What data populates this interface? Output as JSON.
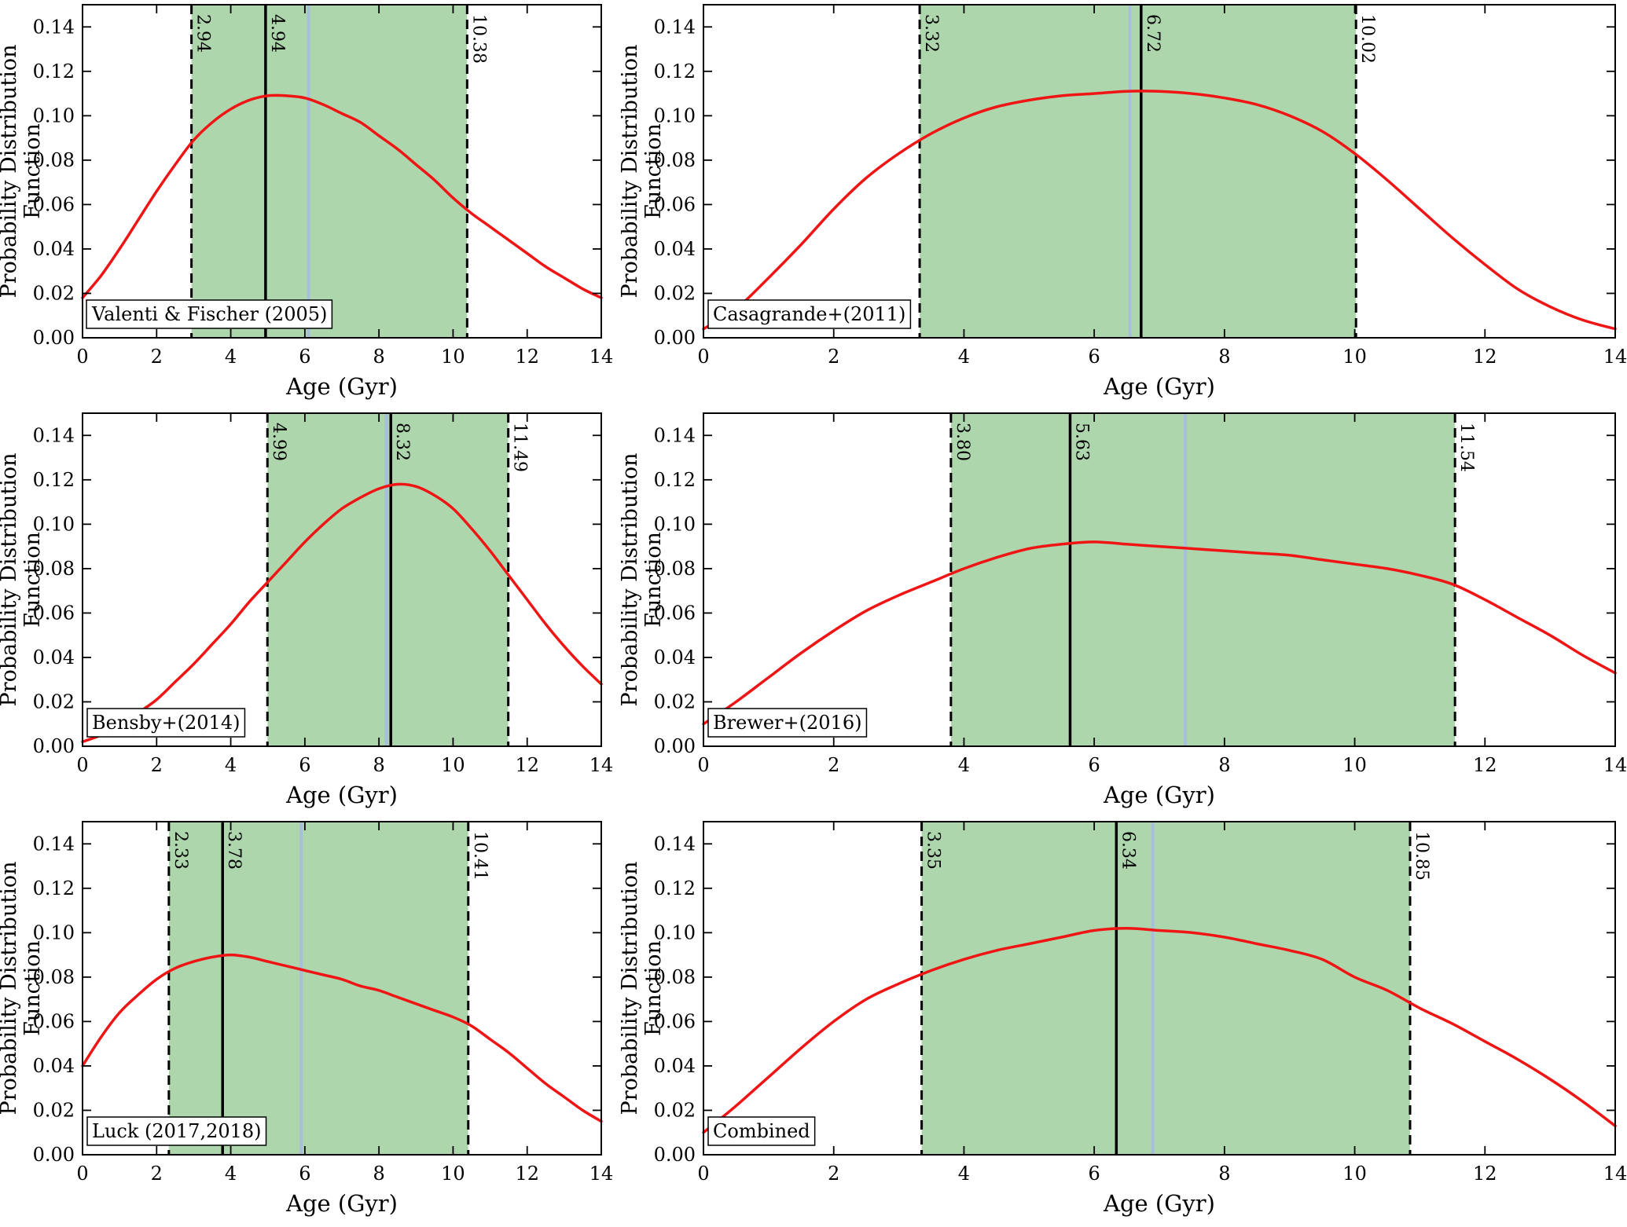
{
  "figure": {
    "xlabel": "Age (Gyr)",
    "ylabel": [
      "Probability Distribution",
      "Function"
    ],
    "xlim": [
      0,
      14
    ],
    "ylim": [
      0,
      0.15
    ],
    "x_ticks": [
      0,
      2,
      4,
      6,
      8,
      10,
      12,
      14
    ],
    "y_ticks": [
      "0.00",
      "0.02",
      "0.04",
      "0.06",
      "0.08",
      "0.10",
      "0.12",
      "0.14"
    ],
    "colors": {
      "curve": "#f01515",
      "band": "#008000",
      "band_opacity": 0.32,
      "blue_line": "#a8bfdc",
      "axis": "#000000",
      "label_box_fill": "#ffffff"
    }
  },
  "chart_data": [
    {
      "type": "line",
      "label": "Valenti & Fischer (2005)",
      "xlabel": "Age (Gyr)",
      "ylabel": "Probability Distribution Function",
      "x_start": 0,
      "x_step": 0.5,
      "y": [
        0.018,
        0.028,
        0.04,
        0.053,
        0.066,
        0.078,
        0.089,
        0.097,
        0.103,
        0.107,
        0.109,
        0.109,
        0.108,
        0.105,
        0.101,
        0.097,
        0.091,
        0.085,
        0.078,
        0.071,
        0.063,
        0.056,
        0.05,
        0.044,
        0.038,
        0.032,
        0.027,
        0.022,
        0.018
      ],
      "lines": {
        "lower": 2.94,
        "mode": 4.94,
        "upper": 10.38,
        "blue": 6.1
      },
      "line_labels": {
        "lower": "2.94",
        "mode": "4.94",
        "upper": "10.38"
      }
    },
    {
      "type": "line",
      "label": "Casagrande+(2011)",
      "xlabel": "Age (Gyr)",
      "ylabel": "Probability Distribution Function",
      "x_start": 0,
      "x_step": 0.5,
      "y": [
        0.004,
        0.013,
        0.027,
        0.042,
        0.058,
        0.072,
        0.083,
        0.092,
        0.099,
        0.104,
        0.107,
        0.109,
        0.11,
        0.111,
        0.111,
        0.11,
        0.108,
        0.105,
        0.1,
        0.093,
        0.083,
        0.071,
        0.058,
        0.045,
        0.033,
        0.022,
        0.014,
        0.008,
        0.004
      ],
      "lines": {
        "lower": 3.32,
        "mode": 6.72,
        "upper": 10.02,
        "blue": 6.55
      },
      "line_labels": {
        "lower": "3.32",
        "mode": "6.72",
        "upper": "10.02"
      }
    },
    {
      "type": "line",
      "label": "Bensby+(2014)",
      "xlabel": "Age (Gyr)",
      "ylabel": "Probability Distribution Function",
      "x_start": 0,
      "x_step": 0.5,
      "y": [
        0.002,
        0.005,
        0.009,
        0.015,
        0.021,
        0.029,
        0.037,
        0.046,
        0.055,
        0.065,
        0.074,
        0.083,
        0.092,
        0.1,
        0.107,
        0.112,
        0.116,
        0.118,
        0.117,
        0.113,
        0.107,
        0.098,
        0.088,
        0.077,
        0.066,
        0.055,
        0.045,
        0.036,
        0.028
      ],
      "lines": {
        "lower": 4.99,
        "mode": 8.32,
        "upper": 11.49,
        "blue": 8.2
      },
      "line_labels": {
        "lower": "4.99",
        "mode": "8.32",
        "upper": "11.49"
      }
    },
    {
      "type": "line",
      "label": "Brewer+(2016)",
      "xlabel": "Age (Gyr)",
      "ylabel": "Probability Distribution Function",
      "x_start": 0,
      "x_step": 0.5,
      "y": [
        0.01,
        0.02,
        0.031,
        0.042,
        0.052,
        0.061,
        0.068,
        0.074,
        0.08,
        0.085,
        0.089,
        0.091,
        0.092,
        0.091,
        0.09,
        0.089,
        0.088,
        0.087,
        0.086,
        0.084,
        0.082,
        0.08,
        0.077,
        0.073,
        0.066,
        0.058,
        0.05,
        0.041,
        0.033
      ],
      "lines": {
        "lower": 3.8,
        "mode": 5.63,
        "upper": 11.54,
        "blue": 7.4
      },
      "line_labels": {
        "lower": "3.80",
        "mode": "5.63",
        "upper": "11.54"
      }
    },
    {
      "type": "line",
      "label": "Luck (2017,2018)",
      "xlabel": "Age (Gyr)",
      "ylabel": "Probability Distribution Function",
      "x_start": 0,
      "x_step": 0.5,
      "y": [
        0.04,
        0.053,
        0.064,
        0.072,
        0.079,
        0.084,
        0.087,
        0.089,
        0.09,
        0.089,
        0.087,
        0.085,
        0.083,
        0.081,
        0.079,
        0.076,
        0.074,
        0.071,
        0.068,
        0.065,
        0.062,
        0.058,
        0.052,
        0.046,
        0.039,
        0.032,
        0.026,
        0.02,
        0.015
      ],
      "lines": {
        "lower": 2.33,
        "mode": 3.78,
        "upper": 10.41,
        "blue": 5.9
      },
      "line_labels": {
        "lower": "2.33",
        "mode": "3.78",
        "upper": "10.41"
      }
    },
    {
      "type": "line",
      "label": "Combined",
      "xlabel": "Age (Gyr)",
      "ylabel": "Probability Distribution Function",
      "x_start": 0,
      "x_step": 0.5,
      "y": [
        0.01,
        0.022,
        0.035,
        0.048,
        0.06,
        0.07,
        0.077,
        0.083,
        0.088,
        0.092,
        0.095,
        0.098,
        0.101,
        0.102,
        0.101,
        0.1,
        0.098,
        0.095,
        0.092,
        0.088,
        0.08,
        0.074,
        0.066,
        0.059,
        0.051,
        0.043,
        0.034,
        0.024,
        0.013
      ],
      "lines": {
        "lower": 3.35,
        "mode": 6.34,
        "upper": 10.85,
        "blue": 6.9
      },
      "line_labels": {
        "lower": "3.35",
        "mode": "6.34",
        "upper": "10.85"
      }
    }
  ]
}
